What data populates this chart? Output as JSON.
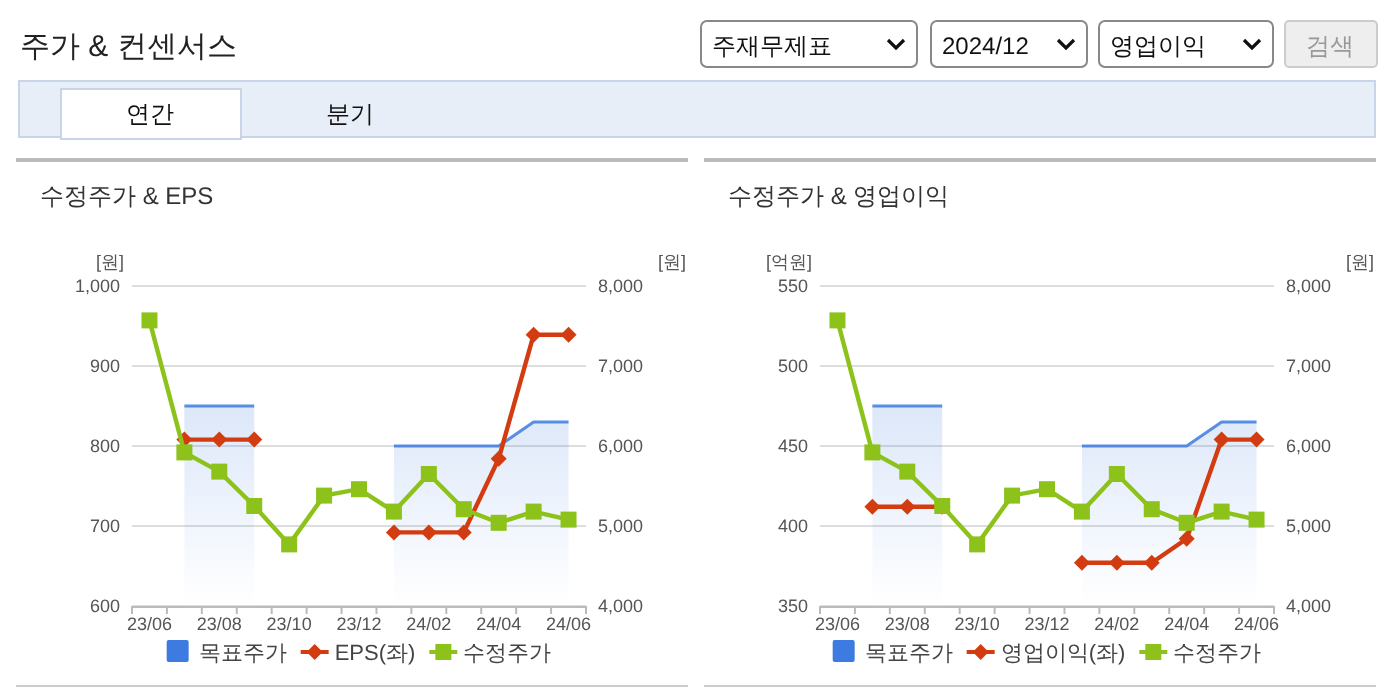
{
  "chart_data": [
    {
      "type": "other",
      "title": "주가 & 컨센서스",
      "annotations": [
        "주재무제표",
        "2024/12",
        "영업이익",
        "검색",
        "연간",
        "분기"
      ]
    },
    {
      "type": "line",
      "title": "수정주가 & EPS",
      "ylabel": "[원]",
      "y2label": "[원]",
      "categories": [
        "23/06",
        null,
        "23/08",
        null,
        "23/10",
        null,
        "23/12",
        null,
        "24/02",
        null,
        "24/04",
        null,
        "24/06"
      ],
      "ylim": [
        600,
        1000
      ],
      "yticks": [
        600,
        700,
        800,
        900,
        {
          "value": 1000,
          "label": "1,000"
        }
      ],
      "y2lim": [
        4000,
        8000
      ],
      "y2ticks": [
        {
          "value": 4000,
          "label": "4,000"
        },
        {
          "value": 5000,
          "label": "5,000"
        },
        {
          "value": 6000,
          "label": "6,000"
        },
        {
          "value": 7000,
          "label": "7,000"
        },
        {
          "value": 8000,
          "label": "8,000"
        }
      ],
      "grid": "y",
      "legend": "bottom",
      "series": [
        {
          "name": "목표주가",
          "type": "area",
          "axis": "y2",
          "color": "#3d7be0",
          "values": [
            null,
            6500,
            6500,
            6500,
            null,
            null,
            null,
            6000,
            6000,
            6000,
            6000,
            6300,
            6300
          ]
        },
        {
          "name": "EPS(좌)",
          "color": "#d33c10",
          "marker": "diamond",
          "values": [
            null,
            808,
            808,
            808,
            null,
            null,
            null,
            692,
            692,
            692,
            784,
            939,
            939
          ]
        },
        {
          "name": "수정주가",
          "axis": "y2",
          "color": "#8cc21a",
          "marker": "square",
          "values": [
            7570,
            5920,
            5680,
            5250,
            4770,
            5380,
            5460,
            5180,
            5650,
            5210,
            5040,
            5180,
            5080
          ]
        }
      ]
    },
    {
      "type": "line",
      "title": "수정주가 & 영업이익",
      "ylabel": "[억원]",
      "y2label": "[원]",
      "categories": [
        "23/06",
        null,
        "23/08",
        null,
        "23/10",
        null,
        "23/12",
        null,
        "24/02",
        null,
        "24/04",
        null,
        "24/06"
      ],
      "ylim": [
        350,
        550
      ],
      "yticks": [
        350,
        400,
        450,
        500,
        550
      ],
      "y2lim": [
        4000,
        8000
      ],
      "y2ticks": [
        {
          "value": 4000,
          "label": "4,000"
        },
        {
          "value": 5000,
          "label": "5,000"
        },
        {
          "value": 6000,
          "label": "6,000"
        },
        {
          "value": 7000,
          "label": "7,000"
        },
        {
          "value": 8000,
          "label": "8,000"
        }
      ],
      "grid": "y",
      "legend": "bottom",
      "series": [
        {
          "name": "목표주가",
          "type": "area",
          "axis": "y2",
          "color": "#3d7be0",
          "values": [
            null,
            6500,
            6500,
            6500,
            null,
            null,
            null,
            6000,
            6000,
            6000,
            6000,
            6300,
            6300
          ]
        },
        {
          "name": "영업이익(좌)",
          "color": "#d33c10",
          "marker": "diamond",
          "values": [
            null,
            412,
            412,
            412,
            null,
            null,
            null,
            377,
            377,
            377,
            392,
            454,
            454
          ]
        },
        {
          "name": "수정주가",
          "axis": "y2",
          "color": "#8cc21a",
          "marker": "square",
          "values": [
            7570,
            5920,
            5680,
            5250,
            4770,
            5380,
            5460,
            5180,
            5650,
            5210,
            5040,
            5180,
            5080
          ]
        }
      ]
    }
  ]
}
